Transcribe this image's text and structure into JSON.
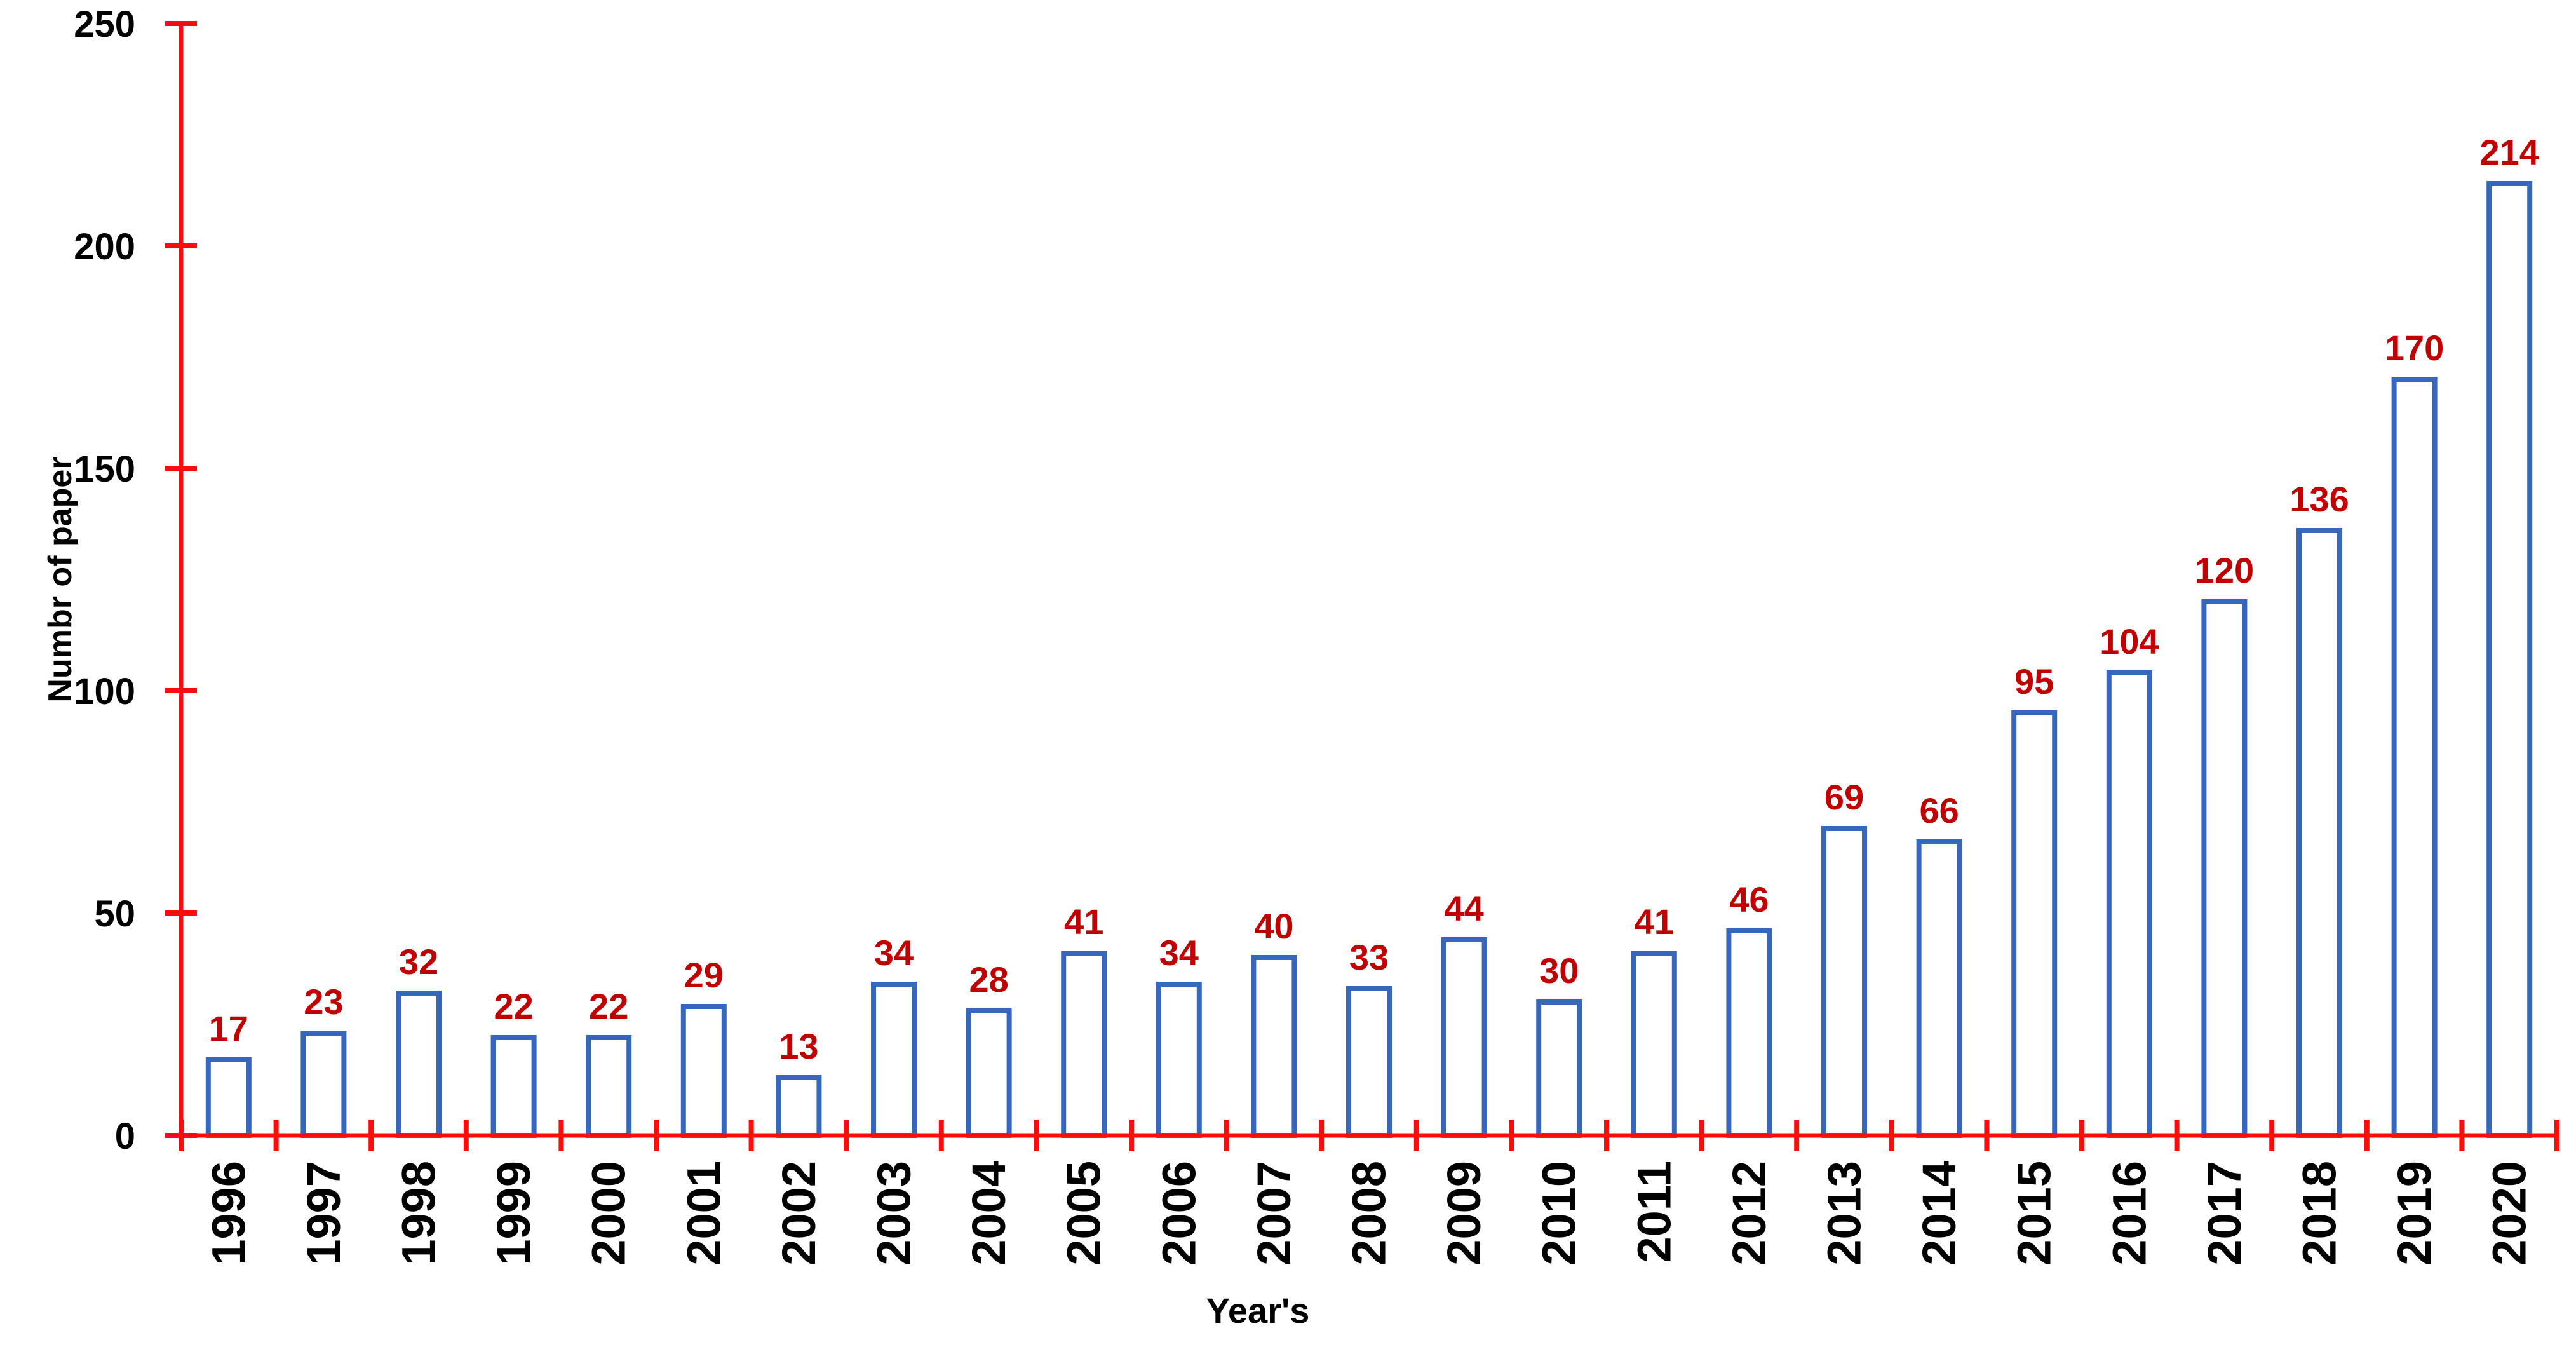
{
  "chart_data": {
    "type": "bar",
    "categories": [
      "1996",
      "1997",
      "1998",
      "1999",
      "2000",
      "2001",
      "2002",
      "2003",
      "2004",
      "2005",
      "2006",
      "2007",
      "2008",
      "2009",
      "2010",
      "2011",
      "2012",
      "2013",
      "2014",
      "2015",
      "2016",
      "2017",
      "2018",
      "2019",
      "2020"
    ],
    "values": [
      17,
      23,
      32,
      22,
      22,
      29,
      13,
      34,
      28,
      41,
      34,
      40,
      33,
      44,
      30,
      41,
      46,
      69,
      66,
      95,
      104,
      120,
      136,
      170,
      214
    ],
    "title": "",
    "xlabel": "Year's",
    "ylabel": "Numbr of paper",
    "ylim": [
      0,
      250
    ],
    "yticks": [
      0,
      50,
      100,
      150,
      200,
      250
    ],
    "grid": false,
    "legend": null,
    "bar_style": "hollow-outline",
    "colors": {
      "axis_red": "#FB0D0D",
      "bar_border_blue": "#3767BD",
      "bar_fill": "#FFFFFF",
      "value_label_red": "#C00000",
      "tick_label_black": "#000000",
      "background": "#FFFFFF"
    }
  }
}
